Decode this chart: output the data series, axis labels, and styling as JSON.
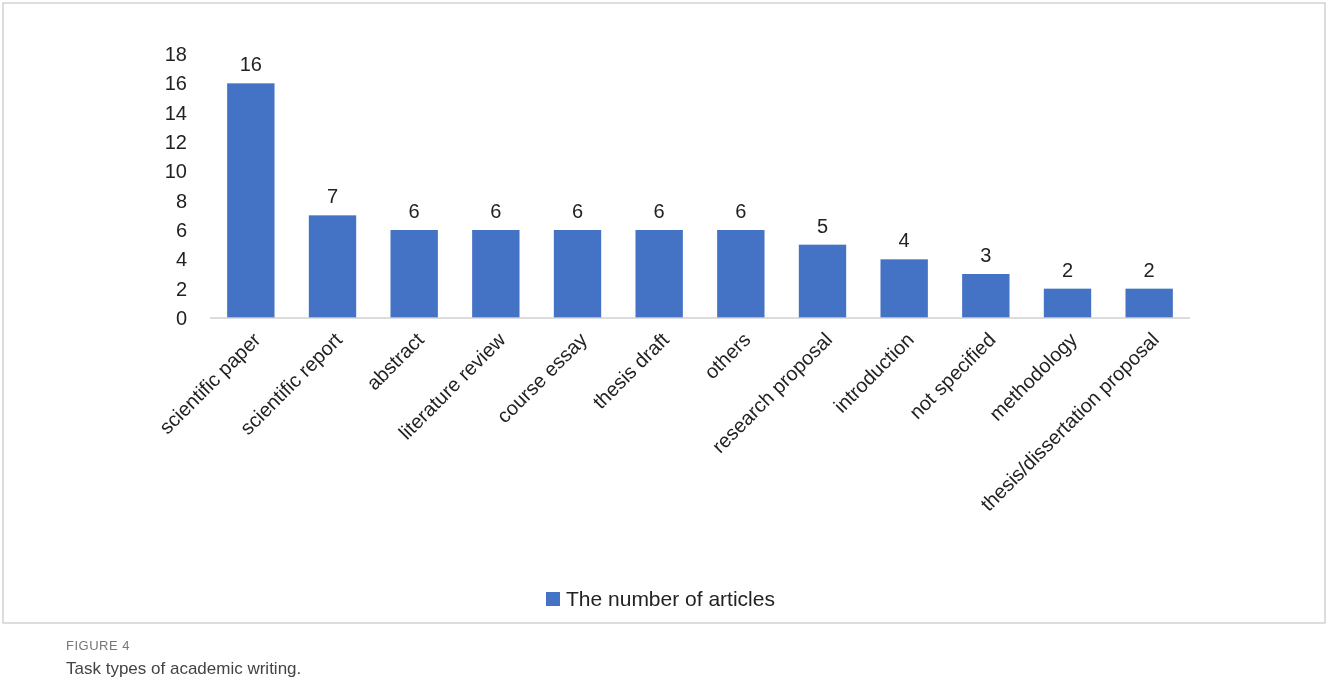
{
  "chart_data": {
    "type": "bar",
    "categories": [
      "scientific paper",
      "scientific report",
      "abstract",
      "literature review",
      "course essay",
      "thesis draft",
      "others",
      "research proposal",
      "introduction",
      "not specified",
      "methodology",
      "thesis/dissertation proposal"
    ],
    "series": [
      {
        "name": "The number of articles",
        "color": "#4472c4",
        "values": [
          16,
          7,
          6,
          6,
          6,
          6,
          6,
          5,
          4,
          3,
          2,
          2
        ]
      }
    ],
    "ylim": [
      0,
      18
    ],
    "yticks": [
      0,
      2,
      4,
      6,
      8,
      10,
      12,
      14,
      16,
      18
    ],
    "data_labels": true,
    "grid": false,
    "legend": "bottom",
    "annotations": [
      "FIGURE 4",
      "Task types of academic writing."
    ]
  }
}
